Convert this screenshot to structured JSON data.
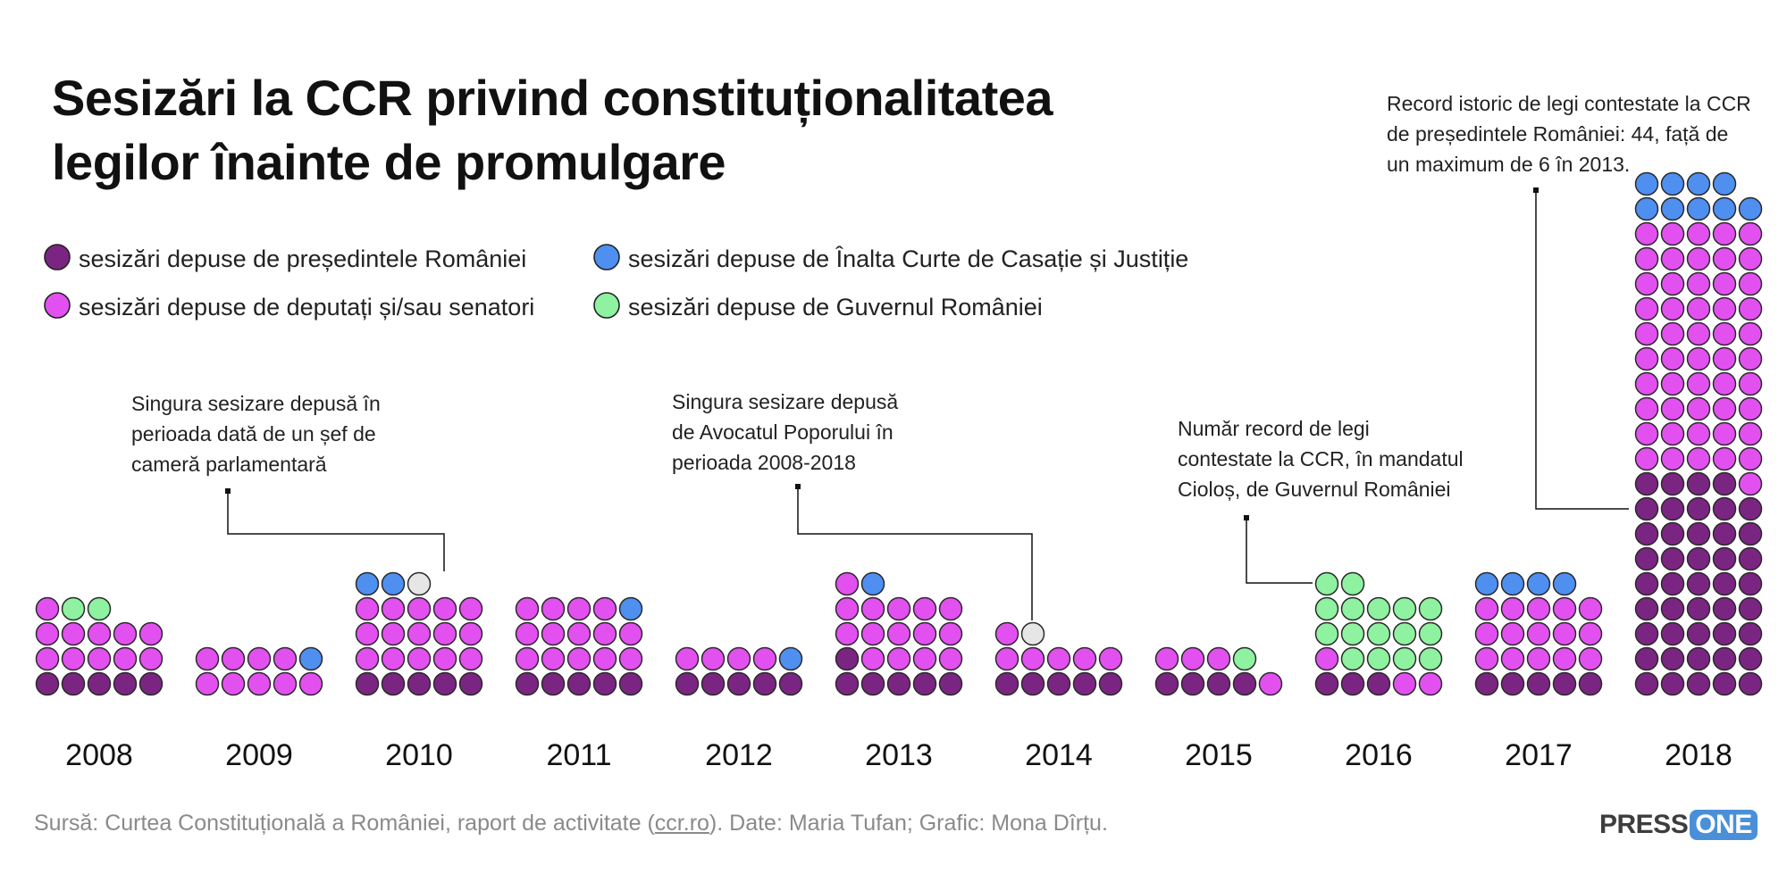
{
  "title": {
    "line1": "Sesizări la CCR privind constituționalitatea",
    "line2": "legilor înainte de promulgare"
  },
  "colors": {
    "presedinte": "#7b2582",
    "deputati": "#e251f0",
    "iccj": "#4f8ff0",
    "guvern": "#8ef2a0",
    "avocat": "#e6e6e6"
  },
  "legend": [
    {
      "key": "presedinte",
      "label": "sesizări depuse de președintele României"
    },
    {
      "key": "deputati",
      "label": "sesizări depuse de deputați și/sau senatori"
    },
    {
      "key": "iccj",
      "label": "sesizări depuse de Înalta Curte de Casație și Justiție"
    },
    {
      "key": "guvern",
      "label": "sesizări depuse de Guvernul României"
    }
  ],
  "chart_data": {
    "type": "waffle",
    "categories": [
      "2008",
      "2009",
      "2010",
      "2011",
      "2012",
      "2013",
      "2014",
      "2015",
      "2016",
      "2017",
      "2018"
    ],
    "series": [
      {
        "key": "presedinte",
        "name": "sesizări depuse de președintele României",
        "values": [
          5,
          0,
          5,
          5,
          5,
          6,
          5,
          4,
          3,
          5,
          44
        ]
      },
      {
        "key": "deputati",
        "name": "sesizări depuse de deputați și/sau senatori",
        "values": [
          11,
          9,
          15,
          14,
          4,
          15,
          6,
          4,
          3,
          15,
          51
        ]
      },
      {
        "key": "iccj",
        "name": "sesizări depuse de Înalta Curte de Casație și Justiție",
        "values": [
          0,
          1,
          2,
          1,
          1,
          1,
          0,
          0,
          0,
          4,
          9
        ]
      },
      {
        "key": "guvern",
        "name": "sesizări depuse de Guvernul României",
        "values": [
          2,
          0,
          0,
          0,
          0,
          0,
          0,
          1,
          16,
          0,
          0
        ]
      },
      {
        "key": "avocat",
        "name": "",
        "values": [
          0,
          0,
          1,
          0,
          0,
          0,
          1,
          0,
          0,
          0,
          0
        ]
      }
    ],
    "annotations": [
      {
        "category": "2010",
        "lines": [
          "Singura sesizare depusă în",
          "perioada dată de un șef de",
          "cameră parlamentară"
        ]
      },
      {
        "category": "2014",
        "lines": [
          "Singura sesizare depusă",
          "de Avocatul Poporului în",
          "perioada 2008-2018"
        ]
      },
      {
        "category": "2016",
        "lines": [
          "Număr record de legi",
          "contestate la CCR, în mandatul",
          "Cioloș, de Guvernul României"
        ]
      },
      {
        "category": "2018",
        "lines": [
          "Record istoric de legi contestate la CCR",
          "de președintele României: 44, față de",
          "un maximum de 6 în 2013."
        ]
      }
    ]
  },
  "footer": {
    "prefix": "Sursă: Curtea Constituțională a României, raport de activitate (",
    "link": "ccr.ro",
    "suffix": "). Date: Maria Tufan; Grafic: Mona Dîrțu."
  },
  "logo": {
    "part1": "PRESS",
    "part2": "ONE"
  }
}
